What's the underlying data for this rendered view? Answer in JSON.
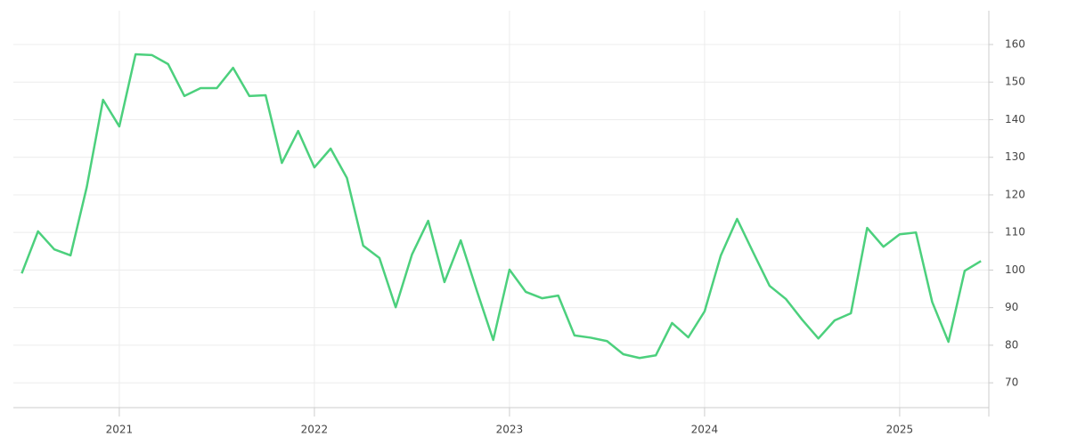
{
  "chart_data": {
    "type": "line",
    "x": [
      "2020-07",
      "2020-08",
      "2020-09",
      "2020-10",
      "2020-11",
      "2020-12",
      "2021-01",
      "2021-02",
      "2021-03",
      "2021-04",
      "2021-05",
      "2021-06",
      "2021-07",
      "2021-08",
      "2021-09",
      "2021-10",
      "2021-11",
      "2021-12",
      "2022-01",
      "2022-02",
      "2022-03",
      "2022-04",
      "2022-05",
      "2022-06",
      "2022-07",
      "2022-08",
      "2022-09",
      "2022-10",
      "2022-11",
      "2022-12",
      "2023-01",
      "2023-02",
      "2023-03",
      "2023-04",
      "2023-05",
      "2023-06",
      "2023-07",
      "2023-08",
      "2023-09",
      "2023-10",
      "2023-11",
      "2023-12",
      "2024-01",
      "2024-02",
      "2024-03",
      "2024-04",
      "2024-05",
      "2024-06",
      "2024-07",
      "2024-08",
      "2024-09",
      "2024-10",
      "2024-11",
      "2024-12",
      "2025-01",
      "2025-02",
      "2025-03",
      "2025-04",
      "2025-05",
      "2025-06"
    ],
    "series": [
      {
        "color": "#4cd07d",
        "values": [
          99.1,
          110.3,
          105.5,
          103.9,
          122.1,
          145.3,
          138.2,
          157.4,
          157.2,
          154.8,
          146.3,
          148.4,
          148.4,
          153.8,
          146.3,
          146.5,
          128.5,
          137,
          127.3,
          132.3,
          124.5,
          106.5,
          103.2,
          90.1,
          104.1,
          113.1,
          96.8,
          107.9,
          94.4,
          81.4,
          100.1,
          94.2,
          92.5,
          93.2,
          82.6,
          82,
          81.1,
          77.6,
          76.6,
          77.3,
          85.9,
          82.1,
          89,
          103.9,
          113.6,
          104.6,
          95.8,
          92.3,
          86.8,
          81.8,
          86.6,
          88.5,
          111.2,
          106.2,
          109.5,
          110,
          91.5,
          80.9,
          99.8,
          102.4
        ]
      }
    ],
    "xlim": [
      2020.457,
      2025.457
    ],
    "xticks": [
      2021,
      2022,
      2023,
      2024,
      2025
    ],
    "ylim": [
      63.4,
      169
    ],
    "yticks": [
      70,
      80,
      90,
      100,
      110,
      120,
      130,
      140,
      150,
      160
    ],
    "grid": true
  }
}
